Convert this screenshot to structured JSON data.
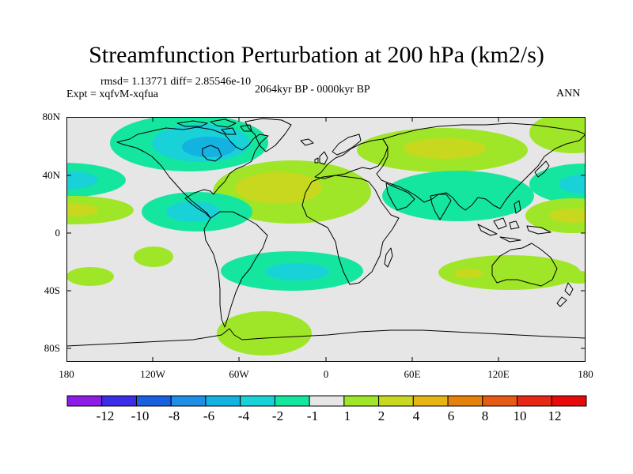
{
  "title": "Streamfunction Perturbation at 200 hPa (km2/s)",
  "stats": "rmsd= 1.13771 diff= 2.85546e-10",
  "expt": "Expt = xqfvM-xqfua",
  "period": "2064kyr BP - 0000kyr BP",
  "season": "ANN",
  "axes": {
    "lon_ticks": [
      "180",
      "120W",
      "60W",
      "0",
      "60E",
      "120E",
      "180"
    ],
    "lat_ticks": [
      "80N",
      "40N",
      "0",
      "40S",
      "80S"
    ]
  },
  "legend": {
    "labels": [
      "-12",
      "-10",
      "-8",
      "-6",
      "-4",
      "-2",
      "-1",
      "1",
      "2",
      "4",
      "6",
      "8",
      "10",
      "12"
    ],
    "colors": [
      "#8c1ce6",
      "#3c2ee8",
      "#1a5fe0",
      "#1e8ee6",
      "#14b2e0",
      "#18d2d8",
      "#14e6a0",
      "#e6e6e6",
      "#a0e628",
      "#c8d81e",
      "#e6b414",
      "#e6820a",
      "#e65a14",
      "#e62814",
      "#e60a0a"
    ]
  },
  "chart_data": {
    "type": "heatmap",
    "variable": "Streamfunction Perturbation at 200 hPa",
    "units": "km2/s",
    "lon_range": [
      -180,
      180
    ],
    "lat_range": [
      -90,
      90
    ],
    "levels": [
      -12,
      -10,
      -8,
      -6,
      -4,
      -2,
      -1,
      1,
      2,
      4,
      6,
      8,
      10,
      12
    ],
    "anomalies": [
      {
        "name": "north-america-high-lat-negative",
        "lon": -100,
        "lat": 60,
        "max": -5
      },
      {
        "name": "north-atlantic-subtropic-positive",
        "lon": -45,
        "lat": 32,
        "max": 3
      },
      {
        "name": "central-america-negative",
        "lon": -90,
        "lat": 10,
        "max": -3
      },
      {
        "name": "eurasia-positive-band",
        "lon": 60,
        "lat": 52,
        "max": 3
      },
      {
        "name": "south-asia-negative",
        "lon": 80,
        "lat": 22,
        "max": -2
      },
      {
        "name": "north-pacific-negative",
        "lon": -170,
        "lat": 32,
        "max": -3
      },
      {
        "name": "east-pacific-positive",
        "lon": -170,
        "lat": 10,
        "max": 2
      },
      {
        "name": "west-pacific-positive",
        "lon": 150,
        "lat": 10,
        "max": 3
      },
      {
        "name": "south-atlantic-negative",
        "lon": -30,
        "lat": -24,
        "max": -3
      },
      {
        "name": "south-indian-positive",
        "lon": 100,
        "lat": -27,
        "max": 2
      },
      {
        "name": "southern-ocean-positive",
        "lon": -50,
        "lat": -65,
        "max": 2
      }
    ]
  }
}
